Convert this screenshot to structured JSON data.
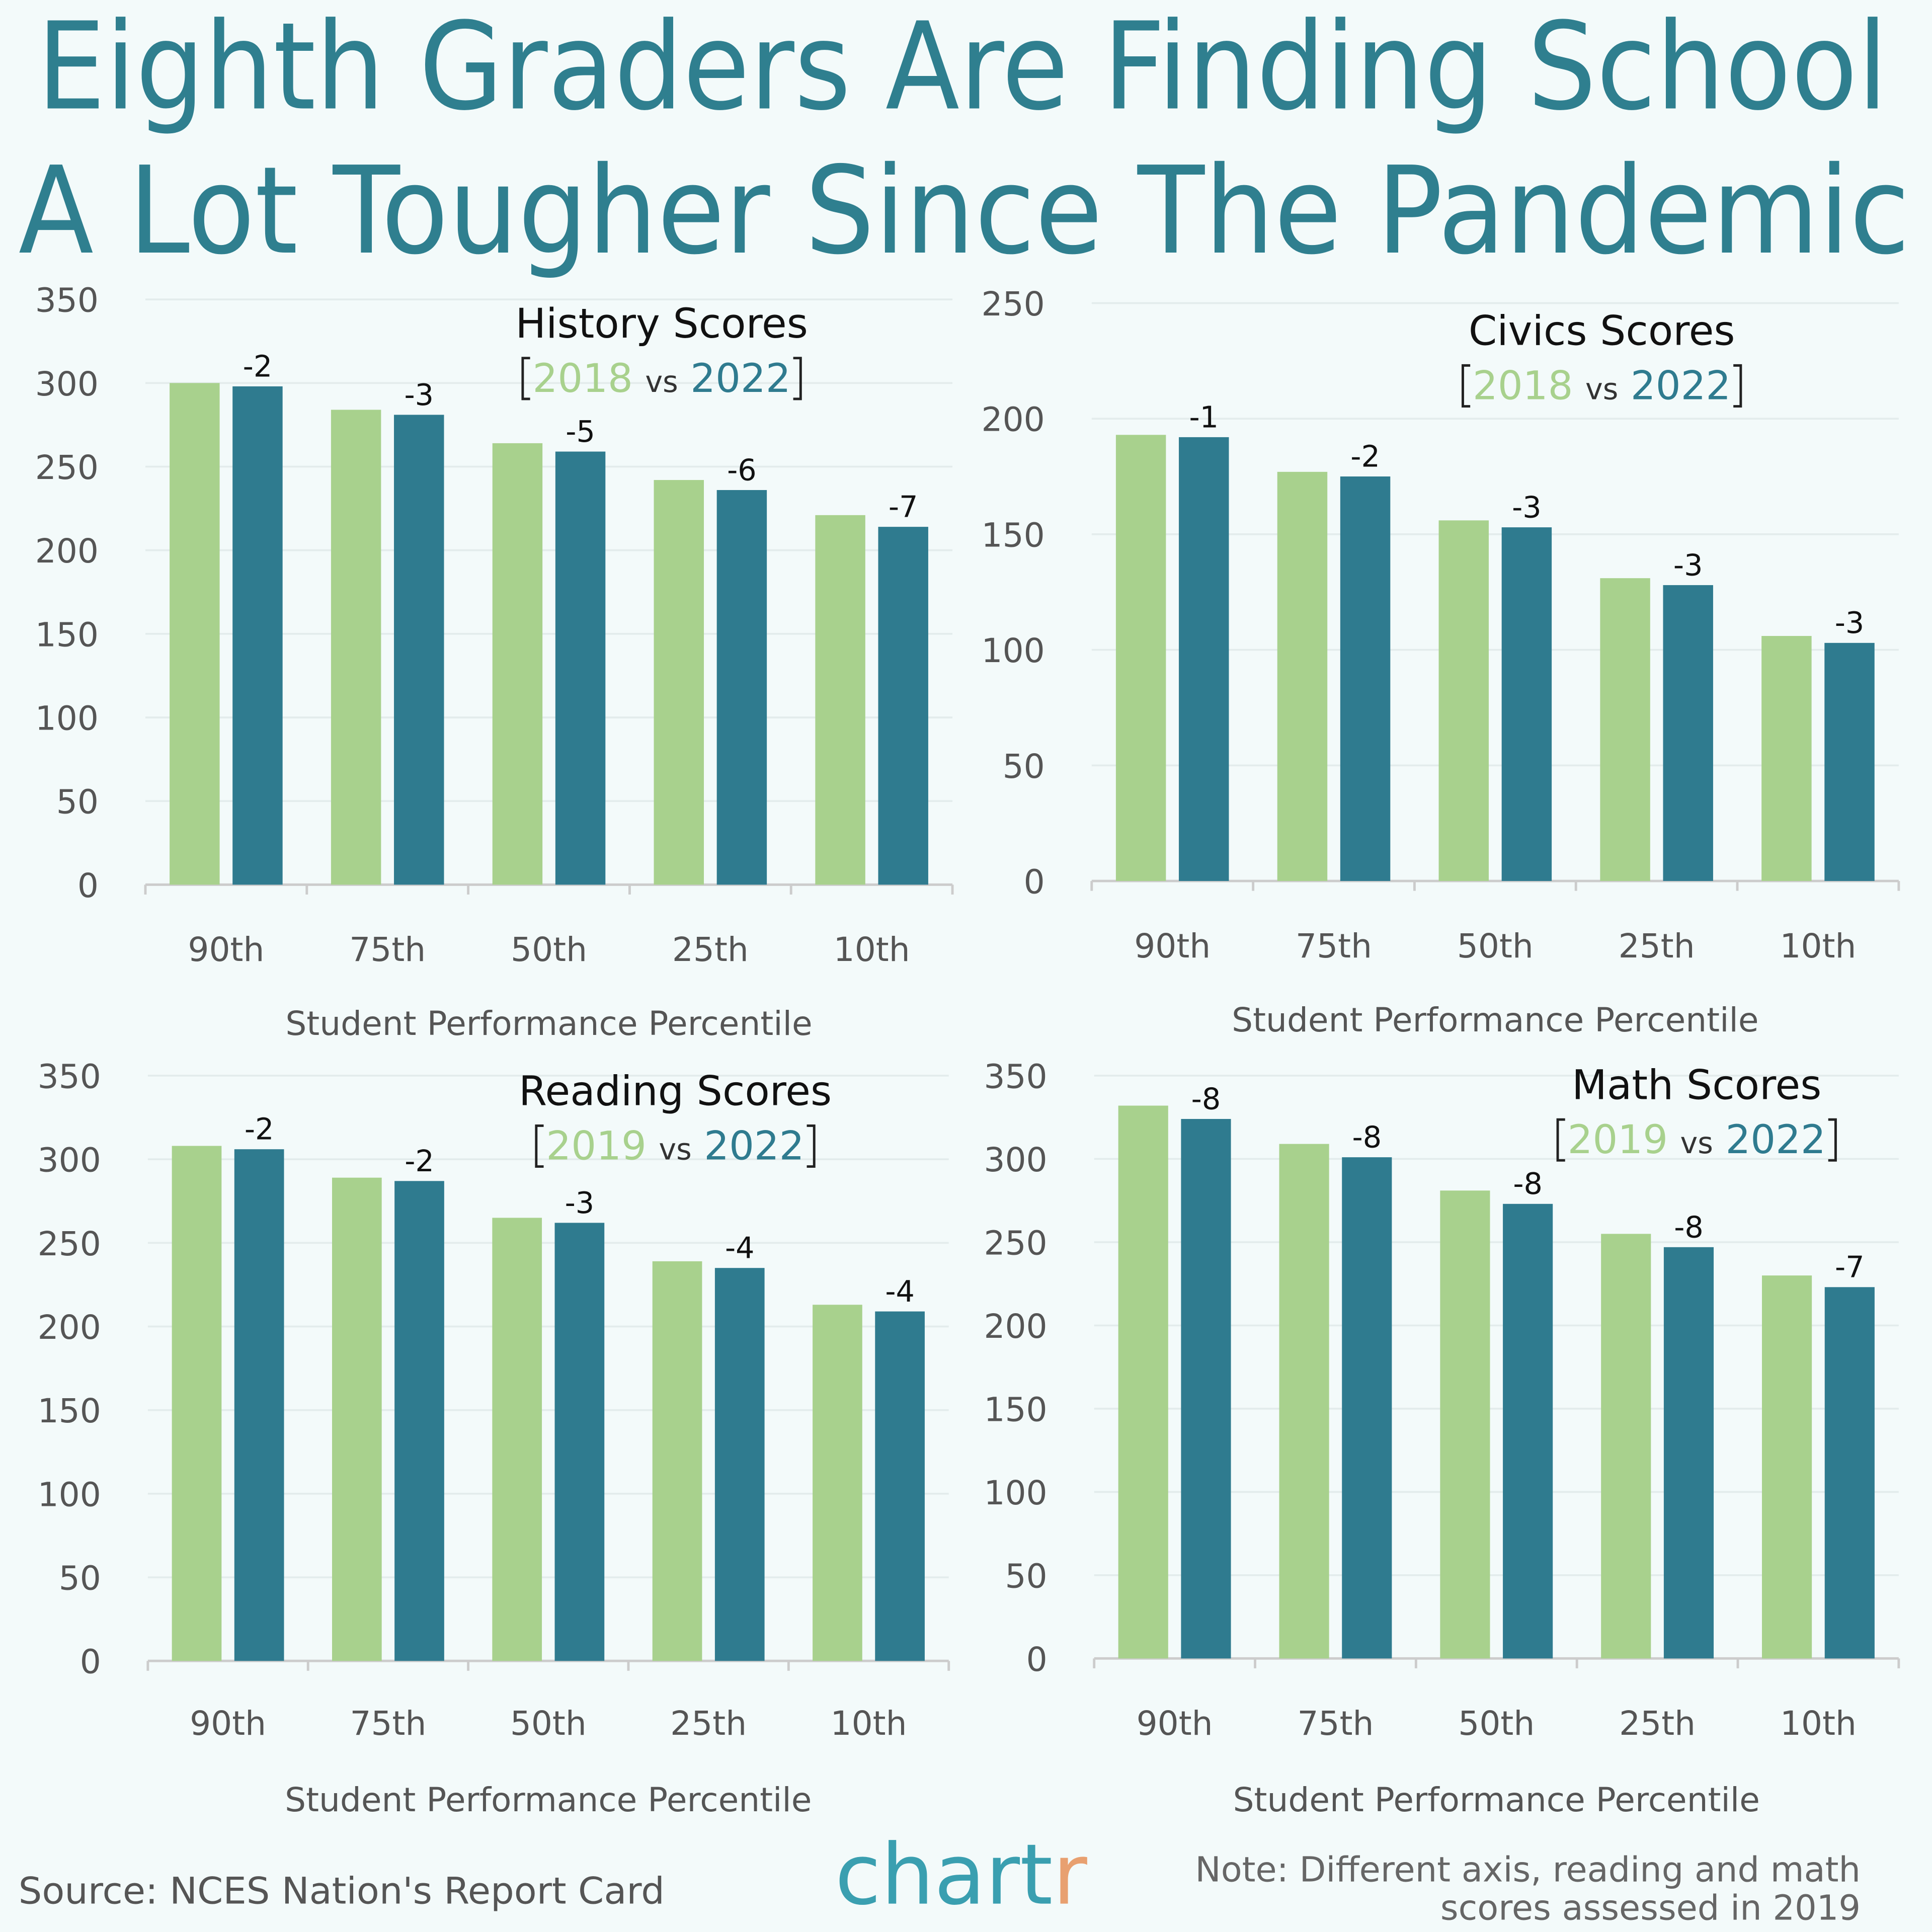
{
  "title": [
    "Eighth Graders Are Finding School",
    "A Lot Tougher Since The Pandemic"
  ],
  "source": "Source: NCES Nation's Report Card",
  "logo": "chartr",
  "note": [
    "Note: Different axis, reading and math",
    "scores assessed in 2019"
  ],
  "chart_data": [
    {
      "type": "bar",
      "title": "History Scores",
      "legend_separator": "vs",
      "categories": [
        "90th",
        "75th",
        "50th",
        "25th",
        "10th"
      ],
      "series": [
        {
          "name": "2018",
          "color": "#a8d18d",
          "values": [
            300,
            284,
            264,
            242,
            221
          ]
        },
        {
          "name": "2022",
          "color": "#2f7b8f",
          "values": [
            298,
            281,
            259,
            236,
            214
          ]
        }
      ],
      "annotations": [
        -2,
        -3,
        -5,
        -6,
        -7
      ],
      "xlabel": "Student Performance Percentile",
      "ylim": [
        0,
        350
      ],
      "yticks": [
        0,
        50,
        100,
        150,
        200,
        250,
        300,
        350
      ],
      "grid": true
    },
    {
      "type": "bar",
      "title": "Civics Scores",
      "legend_separator": "vs",
      "categories": [
        "90th",
        "75th",
        "50th",
        "25th",
        "10th"
      ],
      "series": [
        {
          "name": "2018",
          "color": "#a8d18d",
          "values": [
            193,
            177,
            156,
            131,
            106
          ]
        },
        {
          "name": "2022",
          "color": "#2f7b8f",
          "values": [
            192,
            175,
            153,
            128,
            103
          ]
        }
      ],
      "annotations": [
        -1,
        -2,
        -3,
        -3,
        -3
      ],
      "xlabel": "Student Performance Percentile",
      "ylim": [
        0,
        250
      ],
      "yticks": [
        0,
        50,
        100,
        150,
        200,
        250
      ],
      "grid": true
    },
    {
      "type": "bar",
      "title": "Reading Scores",
      "legend_separator": "vs",
      "categories": [
        "90th",
        "75th",
        "50th",
        "25th",
        "10th"
      ],
      "series": [
        {
          "name": "2019",
          "color": "#a8d18d",
          "values": [
            308,
            289,
            265,
            239,
            213
          ]
        },
        {
          "name": "2022",
          "color": "#2f7b8f",
          "values": [
            306,
            287,
            262,
            235,
            209
          ]
        }
      ],
      "annotations": [
        -2,
        -2,
        -3,
        -4,
        -4
      ],
      "xlabel": "Student Performance Percentile",
      "ylim": [
        0,
        350
      ],
      "yticks": [
        0,
        50,
        100,
        150,
        200,
        250,
        300,
        350
      ],
      "grid": true
    },
    {
      "type": "bar",
      "title": "Math Scores",
      "legend_separator": "vs",
      "categories": [
        "90th",
        "75th",
        "50th",
        "25th",
        "10th"
      ],
      "series": [
        {
          "name": "2019",
          "color": "#a8d18d",
          "values": [
            332,
            309,
            281,
            255,
            230
          ]
        },
        {
          "name": "2022",
          "color": "#2f7b8f",
          "values": [
            324,
            301,
            273,
            247,
            223
          ]
        }
      ],
      "annotations": [
        -8,
        -8,
        -8,
        -8,
        -7
      ],
      "xlabel": "Student Performance Percentile",
      "ylim": [
        0,
        350
      ],
      "yticks": [
        0,
        50,
        100,
        150,
        200,
        250,
        300,
        350
      ],
      "grid": true
    }
  ]
}
